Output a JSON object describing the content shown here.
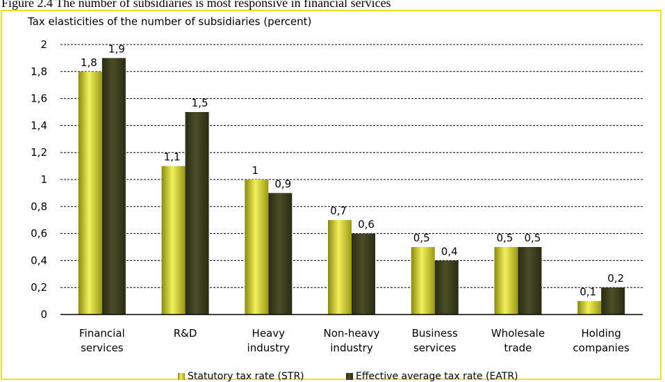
{
  "figure_title": "Figure 2.4 The number of subsidiaries is most responsive in financial services",
  "chart_data": {
    "type": "bar",
    "title": "Tax elasticities of the number of subsidiaries (percent)",
    "xlabel": "",
    "ylabel": "",
    "ylim": [
      0,
      2
    ],
    "yticks": [
      "0",
      "0,2",
      "0,4",
      "0,6",
      "0,8",
      "1",
      "1,2",
      "1,4",
      "1,6",
      "1,8",
      "2"
    ],
    "grid": true,
    "legend_position": "bottom",
    "categories": [
      [
        "Financial",
        "services"
      ],
      [
        "R&D"
      ],
      [
        "Heavy",
        "industry"
      ],
      [
        "Non-heavy",
        "industry"
      ],
      [
        "Business",
        "services"
      ],
      [
        "Wholesale",
        "trade"
      ],
      [
        "Holding",
        "companies"
      ]
    ],
    "series": [
      {
        "name": "Statutory tax rate (STR)",
        "values": [
          1.8,
          1.1,
          1.0,
          0.7,
          0.5,
          0.5,
          0.1
        ],
        "labels": [
          "1,8",
          "1,1",
          "1",
          "0,7",
          "0,5",
          "0,5",
          "0,1"
        ],
        "color": "#b4b21e"
      },
      {
        "name": "Effective average tax rate (EATR)",
        "values": [
          1.9,
          1.5,
          0.9,
          0.6,
          0.4,
          0.5,
          0.2
        ],
        "labels": [
          "1,9",
          "1,5",
          "0,9",
          "0,6",
          "0,4",
          "0,5",
          "0,2"
        ],
        "color": "#3b3d1c"
      }
    ]
  }
}
